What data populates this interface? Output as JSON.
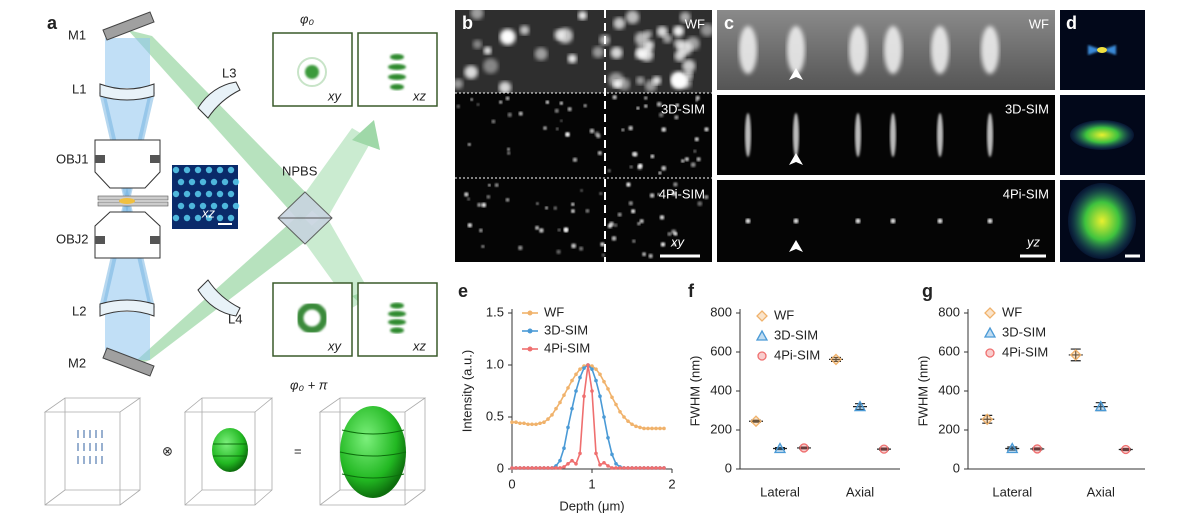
{
  "figure": {
    "panel_labels": [
      "a",
      "b",
      "c",
      "d",
      "e",
      "f",
      "g"
    ],
    "schematic": {
      "mirrors": [
        "M1",
        "M2"
      ],
      "lenses": [
        "L1",
        "L2",
        "L3",
        "L4"
      ],
      "objectives": [
        "OBJ1",
        "OBJ2"
      ],
      "splitter": "NPBS",
      "inset_plane": "xz",
      "phases": [
        "φ₀",
        "φ₀ + π"
      ],
      "psf_planes": [
        "xy",
        "xz",
        "xy",
        "xz"
      ],
      "operators": [
        "⊗",
        "="
      ]
    },
    "image_rows": [
      "WF",
      "3D-SIM",
      "4Pi-SIM"
    ],
    "image_planes": [
      "xy",
      "yz"
    ]
  },
  "chart_data": [
    {
      "type": "line",
      "xlabel": "Depth (μm)",
      "ylabel": "Intensity (a.u.)",
      "xlim": [
        0,
        2
      ],
      "xticks": [
        0,
        1,
        2
      ],
      "ylim": [
        0,
        1.5
      ],
      "yticks": [
        0,
        0.5,
        {
          "value": 1,
          "label": "1.0"
        },
        1.5
      ],
      "x": [
        0,
        0.05,
        0.1,
        0.15,
        0.2,
        0.25,
        0.3,
        0.35,
        0.4,
        0.45,
        0.5,
        0.55,
        0.6,
        0.65,
        0.7,
        0.75,
        0.8,
        0.85,
        0.9,
        0.95,
        1.0,
        1.05,
        1.1,
        1.15,
        1.2,
        1.25,
        1.3,
        1.35,
        1.4,
        1.45,
        1.5,
        1.55,
        1.6,
        1.65,
        1.7,
        1.75,
        1.8,
        1.85,
        1.9
      ],
      "series": [
        {
          "name": "WF",
          "color": "#f0b26b",
          "values": [
            0.45,
            0.45,
            0.44,
            0.44,
            0.43,
            0.43,
            0.43,
            0.44,
            0.45,
            0.48,
            0.52,
            0.58,
            0.64,
            0.71,
            0.78,
            0.85,
            0.91,
            0.96,
            0.99,
            1.0,
            0.99,
            0.96,
            0.91,
            0.84,
            0.77,
            0.69,
            0.62,
            0.55,
            0.5,
            0.46,
            0.43,
            0.41,
            0.4,
            0.39,
            0.39,
            0.39,
            0.39,
            0.39,
            0.39
          ]
        },
        {
          "name": "3D-SIM",
          "color": "#4a9ad6",
          "values": [
            0.01,
            0.01,
            0.01,
            0.01,
            0.01,
            0.01,
            0.01,
            0.01,
            0.01,
            0.01,
            0.01,
            0.03,
            0.08,
            0.2,
            0.4,
            0.58,
            0.75,
            0.88,
            0.97,
            1.0,
            0.96,
            0.85,
            0.7,
            0.5,
            0.3,
            0.14,
            0.05,
            0.02,
            0.01,
            0.01,
            0.01,
            0.01,
            0.01,
            0.01,
            0.01,
            0.01,
            0.01,
            0.01,
            0.01
          ]
        },
        {
          "name": "4Pi-SIM",
          "color": "#ef6f6f",
          "values": [
            0.01,
            0.01,
            0.01,
            0.01,
            0.01,
            0.01,
            0.01,
            0.01,
            0.01,
            0.01,
            0.01,
            0.01,
            0.01,
            0.02,
            0.05,
            0.08,
            0.05,
            0.15,
            0.7,
            1.0,
            0.75,
            0.15,
            0.04,
            0.06,
            0.03,
            0.01,
            0.01,
            0.01,
            0.01,
            0.01,
            0.01,
            0.01,
            0.01,
            0.01,
            0.01,
            0.01,
            0.01,
            0.01,
            0.01
          ]
        }
      ]
    },
    {
      "type": "dot",
      "ylabel": "FWHM (nm)",
      "categories": [
        "Lateral",
        "Axial"
      ],
      "ylim": [
        0,
        800
      ],
      "yticks": [
        0,
        200,
        400,
        600,
        800
      ],
      "series": [
        {
          "name": "WF",
          "color": "#f0b26b",
          "marker": "diamond",
          "values": [
            245,
            562
          ],
          "errors": [
            5,
            10
          ]
        },
        {
          "name": "3D-SIM",
          "color": "#4a9ad6",
          "marker": "triangle",
          "values": [
            105,
            320
          ],
          "errors": [
            5,
            15
          ]
        },
        {
          "name": "4Pi-SIM",
          "color": "#ef6f6f",
          "marker": "circle",
          "values": [
            108,
            102
          ],
          "errors": [
            4,
            5
          ]
        }
      ]
    },
    {
      "type": "dot",
      "ylabel": "FWHM (nm)",
      "categories": [
        "Lateral",
        "Axial"
      ],
      "ylim": [
        0,
        800
      ],
      "yticks": [
        0,
        200,
        400,
        600,
        800
      ],
      "series": [
        {
          "name": "WF",
          "color": "#f0b26b",
          "marker": "diamond",
          "values": [
            255,
            585
          ],
          "errors": [
            20,
            30
          ]
        },
        {
          "name": "3D-SIM",
          "color": "#4a9ad6",
          "marker": "triangle",
          "values": [
            105,
            320
          ],
          "errors": [
            8,
            20
          ]
        },
        {
          "name": "4Pi-SIM",
          "color": "#ef6f6f",
          "marker": "circle",
          "values": [
            103,
            100
          ],
          "errors": [
            5,
            5
          ]
        }
      ]
    }
  ]
}
